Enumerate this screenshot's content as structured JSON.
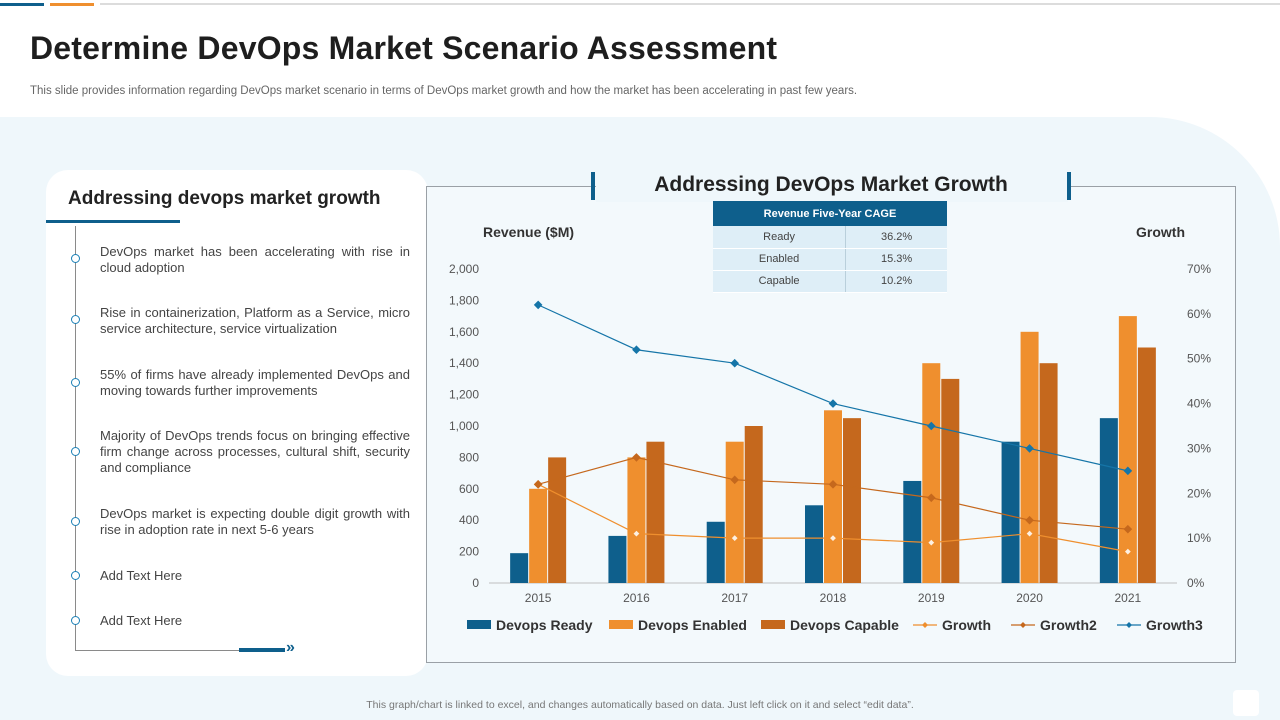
{
  "slide": {
    "title": "Determine DevOps Market Scenario Assessment",
    "subtitle": "This slide provides information regarding DevOps market scenario in terms of DevOps market growth and how the market has been accelerating in past few years.",
    "footer": "This graph/chart is linked to excel, and changes automatically based on data. Just left click on it and select “edit data”."
  },
  "left_panel": {
    "title": "Addressing devops market growth",
    "items": [
      "DevOps market has been accelerating with rise in cloud adoption",
      "Rise in containerization, Platform as a Service, micro service architecture, service virtualization",
      "55% of firms have already implemented DevOps and moving towards further improvements",
      "Majority of DevOps trends focus on bringing effective firm change across processes, cultural shift, security and compliance",
      "DevOps market is expecting double digit growth with rise in adoption rate in next 5-6 years",
      "Add Text Here",
      "Add Text Here"
    ]
  },
  "cage_table": {
    "header": "Revenue Five-Year CAGE",
    "rows": [
      {
        "label": "Ready",
        "value": "36.2%"
      },
      {
        "label": "Enabled",
        "value": "15.3%"
      },
      {
        "label": "Capable",
        "value": "10.2%"
      }
    ]
  },
  "colors": {
    "ready": "#0e5f8c",
    "enabled": "#ef8f2e",
    "capable": "#c5681d",
    "growth": "#ef8f2e",
    "growth2": "#c5681d",
    "growth3": "#1575a8"
  },
  "chart_data": {
    "type": "bar",
    "title": "Addressing DevOps Market Growth",
    "ylabel": "Revenue ($M)",
    "y2label": "Growth",
    "categories": [
      "2015",
      "2016",
      "2017",
      "2018",
      "2019",
      "2020",
      "2021"
    ],
    "ylim": [
      0,
      2000
    ],
    "y2lim": [
      0,
      70
    ],
    "yticks": [
      "0",
      "200",
      "400",
      "600",
      "800",
      "1,000",
      "1,200",
      "1,400",
      "1,600",
      "1,800",
      "2,000"
    ],
    "y2ticks": [
      "0%",
      "10%",
      "20%",
      "30%",
      "40%",
      "50%",
      "60%",
      "70%"
    ],
    "series": [
      {
        "name": "Devops Ready",
        "kind": "bar",
        "axis": "left",
        "values": [
          190,
          300,
          390,
          495,
          650,
          900,
          1050
        ]
      },
      {
        "name": "Devops Enabled",
        "kind": "bar",
        "axis": "left",
        "values": [
          600,
          800,
          900,
          1100,
          1400,
          1600,
          1700
        ]
      },
      {
        "name": "Devops Capable",
        "kind": "bar",
        "axis": "left",
        "values": [
          800,
          900,
          1000,
          1050,
          1300,
          1400,
          1500
        ]
      },
      {
        "name": "Growth",
        "kind": "line",
        "axis": "right",
        "values": [
          22,
          11,
          10,
          10,
          9,
          11,
          7
        ]
      },
      {
        "name": "Growth2",
        "kind": "line",
        "axis": "right",
        "values": [
          22,
          28,
          23,
          22,
          19,
          14,
          12
        ]
      },
      {
        "name": "Growth3",
        "kind": "line",
        "axis": "right",
        "values": [
          62,
          52,
          49,
          40,
          35,
          30,
          25
        ]
      }
    ],
    "legend_position": "bottom"
  }
}
